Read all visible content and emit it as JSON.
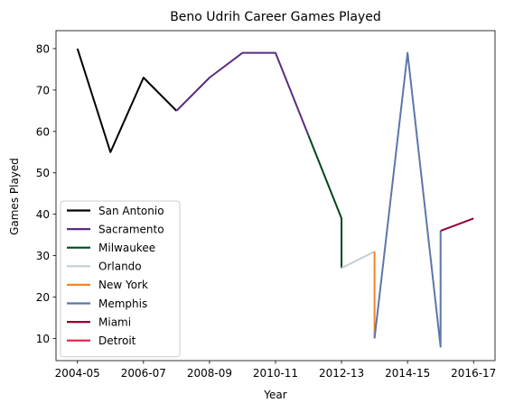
{
  "chart_data": {
    "type": "line",
    "title": "Beno Udrih Career Games Played",
    "xlabel": "Year",
    "ylabel": "Games Played",
    "x_ticks": [
      {
        "x": 0,
        "label": "2004-05"
      },
      {
        "x": 2,
        "label": "2006-07"
      },
      {
        "x": 4,
        "label": "2008-09"
      },
      {
        "x": 6,
        "label": "2010-11"
      },
      {
        "x": 8,
        "label": "2012-13"
      },
      {
        "x": 10,
        "label": "2014-15"
      },
      {
        "x": 12,
        "label": "2016-17"
      }
    ],
    "y_ticks": [
      10,
      20,
      30,
      40,
      50,
      60,
      70,
      80
    ],
    "xlim": [
      -0.65,
      12.65
    ],
    "ylim": [
      4.65,
      84.35
    ],
    "grid": false,
    "legend_position": "lower-left",
    "series": [
      {
        "name": "San Antonio",
        "color": "#000000",
        "points": [
          [
            0,
            80
          ],
          [
            1,
            55
          ],
          [
            2,
            73
          ],
          [
            3,
            65
          ]
        ]
      },
      {
        "name": "Sacramento",
        "color": "#5a2d81",
        "points": [
          [
            3,
            65
          ],
          [
            4,
            73
          ],
          [
            5,
            79
          ],
          [
            6,
            79
          ],
          [
            7,
            59
          ]
        ]
      },
      {
        "name": "Milwaukee",
        "color": "#00471b",
        "points": [
          [
            7,
            59
          ],
          [
            8,
            39
          ],
          [
            8,
            27
          ]
        ]
      },
      {
        "name": "Orlando",
        "color": "#c4ced4",
        "points": [
          [
            8,
            27
          ],
          [
            9,
            31
          ]
        ]
      },
      {
        "name": "New York",
        "color": "#f58426",
        "points": [
          [
            9,
            31
          ],
          [
            9,
            10
          ]
        ]
      },
      {
        "name": "Memphis",
        "color": "#5d76a9",
        "points": [
          [
            9,
            10
          ],
          [
            10,
            79
          ],
          [
            11,
            8
          ],
          [
            11,
            36
          ]
        ]
      },
      {
        "name": "Miami",
        "color": "#98002e",
        "points": [
          [
            11,
            36
          ],
          [
            12,
            39
          ]
        ]
      },
      {
        "name": "Detroit",
        "color": "#e31c48",
        "points": []
      }
    ]
  }
}
